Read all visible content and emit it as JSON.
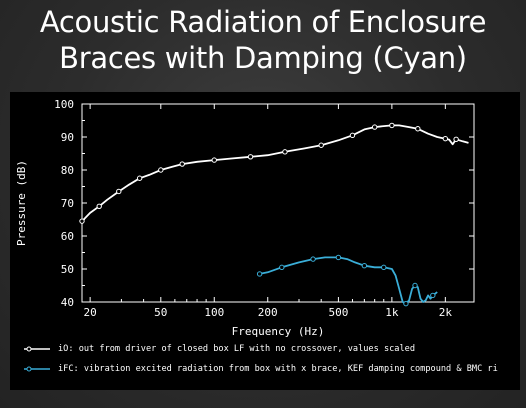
{
  "slide": {
    "title_line1": "Acoustic Radiation of Enclosure",
    "title_line2": "Braces with Damping (Cyan)"
  },
  "colors": {
    "background": "#000000",
    "series_io": "#ffffff",
    "series_ifc": "#3aaed8"
  },
  "chart_data": {
    "type": "line",
    "xlabel": "Frequency  (Hz)",
    "ylabel": "Pressure  (dB)",
    "xscale": "log",
    "xlim": [
      18,
      2900
    ],
    "ylim": [
      40,
      100
    ],
    "xticks": [
      {
        "value": 20,
        "label": "20"
      },
      {
        "value": 50,
        "label": "50"
      },
      {
        "value": 100,
        "label": "100"
      },
      {
        "value": 200,
        "label": "200"
      },
      {
        "value": 500,
        "label": "500"
      },
      {
        "value": 1000,
        "label": "1k"
      },
      {
        "value": 2000,
        "label": "2k"
      }
    ],
    "yticks": [
      40,
      50,
      60,
      70,
      80,
      90,
      100
    ],
    "grid": false,
    "legend_position": "bottom",
    "series": [
      {
        "name": "iO: out from driver of closed box LF with no crossover, values scaled",
        "color": "#ffffff",
        "x": [
          18,
          20,
          22.5,
          25,
          29,
          33,
          38,
          43,
          50,
          58,
          66,
          80,
          100,
          125,
          160,
          200,
          250,
          320,
          400,
          500,
          600,
          700,
          800,
          900,
          1000,
          1100,
          1250,
          1400,
          1600,
          1800,
          2000,
          2100,
          2200,
          2300,
          2500,
          2700
        ],
        "y": [
          64.5,
          67,
          69,
          71,
          73.5,
          75.5,
          77.5,
          78.5,
          80,
          81,
          81.8,
          82.5,
          83,
          83.5,
          84,
          84.5,
          85.5,
          86.5,
          87.5,
          89,
          90.5,
          92.3,
          93,
          93.3,
          93.5,
          93.5,
          93,
          92.5,
          91,
          90,
          89.5,
          89.2,
          87.8,
          89.3,
          88.7,
          88.2
        ],
        "markers_x": [
          18,
          22.5,
          29,
          38,
          50,
          66,
          100,
          160,
          250,
          400,
          600,
          800,
          1000,
          1400,
          2000,
          2300
        ]
      },
      {
        "name": "iFC: vibration excited radiation from box with x brace, KEF damping compound & BMC ri",
        "color": "#3aaed8",
        "x": [
          180,
          200,
          240,
          300,
          360,
          420,
          500,
          560,
          620,
          700,
          800,
          900,
          1000,
          1050,
          1100,
          1150,
          1200,
          1250,
          1300,
          1350,
          1400,
          1450,
          1500,
          1550,
          1600,
          1650,
          1700,
          1750,
          1800
        ],
        "y": [
          48.5,
          49,
          50.5,
          52,
          53,
          53.5,
          53.5,
          53,
          52,
          51,
          50.5,
          50.5,
          50,
          48,
          44,
          40,
          39.5,
          40.5,
          44,
          45,
          44.5,
          41,
          40,
          40.5,
          42,
          41,
          42,
          42.5,
          43
        ],
        "markers_x": [
          180,
          240,
          360,
          500,
          700,
          900,
          1200,
          1350,
          1700
        ]
      }
    ]
  }
}
